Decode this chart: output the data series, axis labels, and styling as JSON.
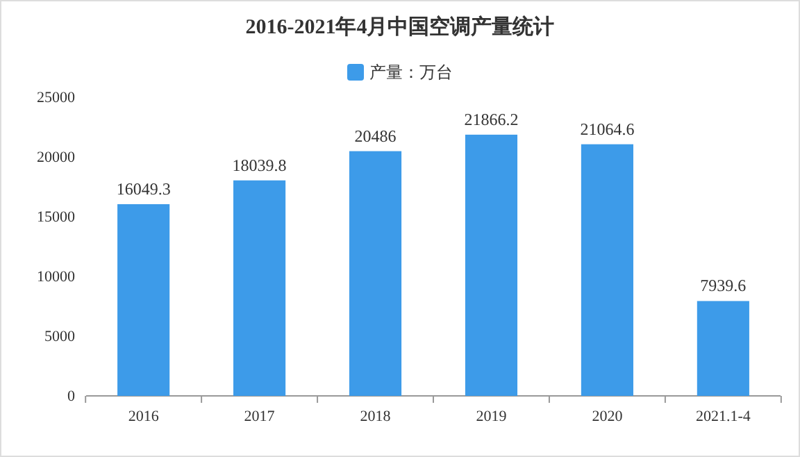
{
  "chart_data": {
    "type": "bar",
    "title": "2016-2021年4月中国空调产量统计",
    "categories": [
      "2016",
      "2017",
      "2018",
      "2019",
      "2020",
      "2021.1-4"
    ],
    "series": [
      {
        "name": "产量：万台",
        "color": "#3d9be9",
        "values": [
          16049.3,
          18039.8,
          20486,
          21866.2,
          21064.6,
          7939.6
        ]
      }
    ],
    "ylim": [
      0,
      25000
    ],
    "yticks": [
      0,
      5000,
      10000,
      15000,
      20000,
      25000
    ],
    "data_labels": true,
    "legend": "top",
    "grid": false
  }
}
